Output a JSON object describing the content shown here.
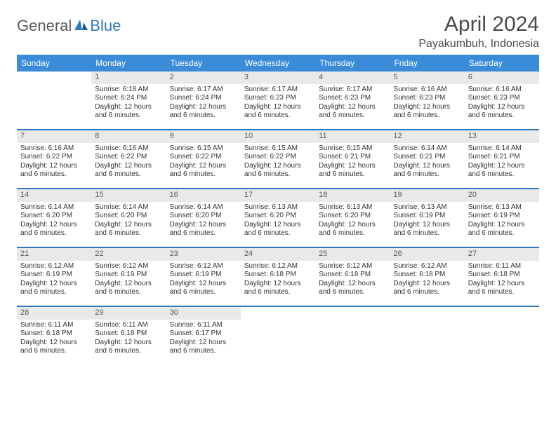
{
  "logo": {
    "general": "General",
    "blue": "Blue"
  },
  "header": {
    "month_title": "April 2024",
    "location": "Payakumbuh, Indonesia"
  },
  "colors": {
    "header_bg": "#3a8bd8",
    "header_text": "#ffffff",
    "week_divider": "#2f78c2",
    "daynum_bg": "#e9e9e9",
    "text": "#333333",
    "logo_gray": "#5a5a5a",
    "logo_blue": "#2f78c2"
  },
  "day_names": [
    "Sunday",
    "Monday",
    "Tuesday",
    "Wednesday",
    "Thursday",
    "Friday",
    "Saturday"
  ],
  "weeks": [
    [
      null,
      {
        "day": "1",
        "sunrise": "Sunrise: 6:18 AM",
        "sunset": "Sunset: 6:24 PM",
        "daylight": "Daylight: 12 hours and 6 minutes."
      },
      {
        "day": "2",
        "sunrise": "Sunrise: 6:17 AM",
        "sunset": "Sunset: 6:24 PM",
        "daylight": "Daylight: 12 hours and 6 minutes."
      },
      {
        "day": "3",
        "sunrise": "Sunrise: 6:17 AM",
        "sunset": "Sunset: 6:23 PM",
        "daylight": "Daylight: 12 hours and 6 minutes."
      },
      {
        "day": "4",
        "sunrise": "Sunrise: 6:17 AM",
        "sunset": "Sunset: 6:23 PM",
        "daylight": "Daylight: 12 hours and 6 minutes."
      },
      {
        "day": "5",
        "sunrise": "Sunrise: 6:16 AM",
        "sunset": "Sunset: 6:23 PM",
        "daylight": "Daylight: 12 hours and 6 minutes."
      },
      {
        "day": "6",
        "sunrise": "Sunrise: 6:16 AM",
        "sunset": "Sunset: 6:23 PM",
        "daylight": "Daylight: 12 hours and 6 minutes."
      }
    ],
    [
      {
        "day": "7",
        "sunrise": "Sunrise: 6:16 AM",
        "sunset": "Sunset: 6:22 PM",
        "daylight": "Daylight: 12 hours and 6 minutes."
      },
      {
        "day": "8",
        "sunrise": "Sunrise: 6:16 AM",
        "sunset": "Sunset: 6:22 PM",
        "daylight": "Daylight: 12 hours and 6 minutes."
      },
      {
        "day": "9",
        "sunrise": "Sunrise: 6:15 AM",
        "sunset": "Sunset: 6:22 PM",
        "daylight": "Daylight: 12 hours and 6 minutes."
      },
      {
        "day": "10",
        "sunrise": "Sunrise: 6:15 AM",
        "sunset": "Sunset: 6:22 PM",
        "daylight": "Daylight: 12 hours and 6 minutes."
      },
      {
        "day": "11",
        "sunrise": "Sunrise: 6:15 AM",
        "sunset": "Sunset: 6:21 PM",
        "daylight": "Daylight: 12 hours and 6 minutes."
      },
      {
        "day": "12",
        "sunrise": "Sunrise: 6:14 AM",
        "sunset": "Sunset: 6:21 PM",
        "daylight": "Daylight: 12 hours and 6 minutes."
      },
      {
        "day": "13",
        "sunrise": "Sunrise: 6:14 AM",
        "sunset": "Sunset: 6:21 PM",
        "daylight": "Daylight: 12 hours and 6 minutes."
      }
    ],
    [
      {
        "day": "14",
        "sunrise": "Sunrise: 6:14 AM",
        "sunset": "Sunset: 6:20 PM",
        "daylight": "Daylight: 12 hours and 6 minutes."
      },
      {
        "day": "15",
        "sunrise": "Sunrise: 6:14 AM",
        "sunset": "Sunset: 6:20 PM",
        "daylight": "Daylight: 12 hours and 6 minutes."
      },
      {
        "day": "16",
        "sunrise": "Sunrise: 6:14 AM",
        "sunset": "Sunset: 6:20 PM",
        "daylight": "Daylight: 12 hours and 6 minutes."
      },
      {
        "day": "17",
        "sunrise": "Sunrise: 6:13 AM",
        "sunset": "Sunset: 6:20 PM",
        "daylight": "Daylight: 12 hours and 6 minutes."
      },
      {
        "day": "18",
        "sunrise": "Sunrise: 6:13 AM",
        "sunset": "Sunset: 6:20 PM",
        "daylight": "Daylight: 12 hours and 6 minutes."
      },
      {
        "day": "19",
        "sunrise": "Sunrise: 6:13 AM",
        "sunset": "Sunset: 6:19 PM",
        "daylight": "Daylight: 12 hours and 6 minutes."
      },
      {
        "day": "20",
        "sunrise": "Sunrise: 6:13 AM",
        "sunset": "Sunset: 6:19 PM",
        "daylight": "Daylight: 12 hours and 6 minutes."
      }
    ],
    [
      {
        "day": "21",
        "sunrise": "Sunrise: 6:12 AM",
        "sunset": "Sunset: 6:19 PM",
        "daylight": "Daylight: 12 hours and 6 minutes."
      },
      {
        "day": "22",
        "sunrise": "Sunrise: 6:12 AM",
        "sunset": "Sunset: 6:19 PM",
        "daylight": "Daylight: 12 hours and 6 minutes."
      },
      {
        "day": "23",
        "sunrise": "Sunrise: 6:12 AM",
        "sunset": "Sunset: 6:19 PM",
        "daylight": "Daylight: 12 hours and 6 minutes."
      },
      {
        "day": "24",
        "sunrise": "Sunrise: 6:12 AM",
        "sunset": "Sunset: 6:18 PM",
        "daylight": "Daylight: 12 hours and 6 minutes."
      },
      {
        "day": "25",
        "sunrise": "Sunrise: 6:12 AM",
        "sunset": "Sunset: 6:18 PM",
        "daylight": "Daylight: 12 hours and 6 minutes."
      },
      {
        "day": "26",
        "sunrise": "Sunrise: 6:12 AM",
        "sunset": "Sunset: 6:18 PM",
        "daylight": "Daylight: 12 hours and 6 minutes."
      },
      {
        "day": "27",
        "sunrise": "Sunrise: 6:11 AM",
        "sunset": "Sunset: 6:18 PM",
        "daylight": "Daylight: 12 hours and 6 minutes."
      }
    ],
    [
      {
        "day": "28",
        "sunrise": "Sunrise: 6:11 AM",
        "sunset": "Sunset: 6:18 PM",
        "daylight": "Daylight: 12 hours and 6 minutes."
      },
      {
        "day": "29",
        "sunrise": "Sunrise: 6:11 AM",
        "sunset": "Sunset: 6:18 PM",
        "daylight": "Daylight: 12 hours and 6 minutes."
      },
      {
        "day": "30",
        "sunrise": "Sunrise: 6:11 AM",
        "sunset": "Sunset: 6:17 PM",
        "daylight": "Daylight: 12 hours and 6 minutes."
      },
      null,
      null,
      null,
      null
    ]
  ]
}
